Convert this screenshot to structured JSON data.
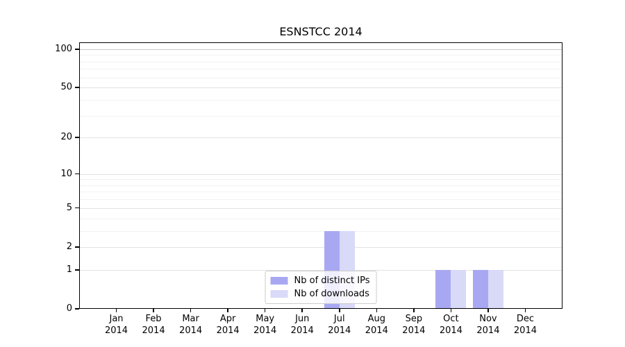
{
  "chart_data": {
    "type": "bar",
    "title": "ESNSTCC 2014",
    "categories": [
      {
        "month": "Jan",
        "year": "2014"
      },
      {
        "month": "Feb",
        "year": "2014"
      },
      {
        "month": "Mar",
        "year": "2014"
      },
      {
        "month": "Apr",
        "year": "2014"
      },
      {
        "month": "May",
        "year": "2014"
      },
      {
        "month": "Jun",
        "year": "2014"
      },
      {
        "month": "Jul",
        "year": "2014"
      },
      {
        "month": "Aug",
        "year": "2014"
      },
      {
        "month": "Sep",
        "year": "2014"
      },
      {
        "month": "Oct",
        "year": "2014"
      },
      {
        "month": "Nov",
        "year": "2014"
      },
      {
        "month": "Dec",
        "year": "2014"
      }
    ],
    "series": [
      {
        "name": "Nb of distinct IPs",
        "color": "#a8a8f2",
        "values": [
          0,
          0,
          0,
          0,
          0,
          0,
          3,
          0,
          0,
          1,
          1,
          0
        ]
      },
      {
        "name": "Nb of downloads",
        "color": "#d9d9f8",
        "values": [
          0,
          0,
          0,
          0,
          0,
          0,
          3,
          0,
          0,
          1,
          1,
          0
        ]
      }
    ],
    "yscale": "symlog",
    "ylim": [
      0,
      113
    ],
    "yticks": [
      100,
      50,
      20,
      10,
      5,
      2,
      1,
      0
    ],
    "yticks_minor": [
      3,
      4,
      6,
      7,
      8,
      9,
      30,
      40,
      60,
      70,
      80,
      90
    ],
    "legend": {
      "position": "lower center"
    },
    "style": {
      "background": "#ffffff",
      "grid_major": "#e2e2e2",
      "grid_minor": "#f2f2f2",
      "grid_top": "#c9c9c9",
      "axis_color": "#000000"
    }
  }
}
